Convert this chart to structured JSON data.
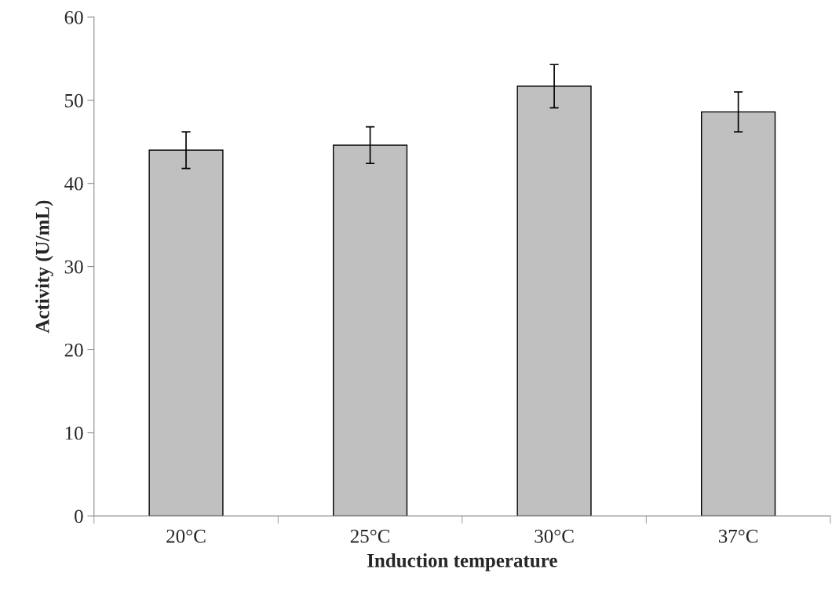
{
  "chart_data": {
    "type": "bar",
    "xlabel": "Induction temperature",
    "ylabel": "Activity (U/mL)",
    "categories": [
      "20°C",
      "25°C",
      "30°C",
      "37°C"
    ],
    "values": [
      44.0,
      44.6,
      51.7,
      48.6
    ],
    "errors": [
      2.2,
      2.2,
      2.6,
      2.4
    ],
    "color": "#c0c0c0",
    "ylim": [
      0,
      60
    ],
    "yticks": [
      0,
      10,
      20,
      30,
      40,
      50,
      60
    ],
    "grid": false,
    "legend": false
  }
}
